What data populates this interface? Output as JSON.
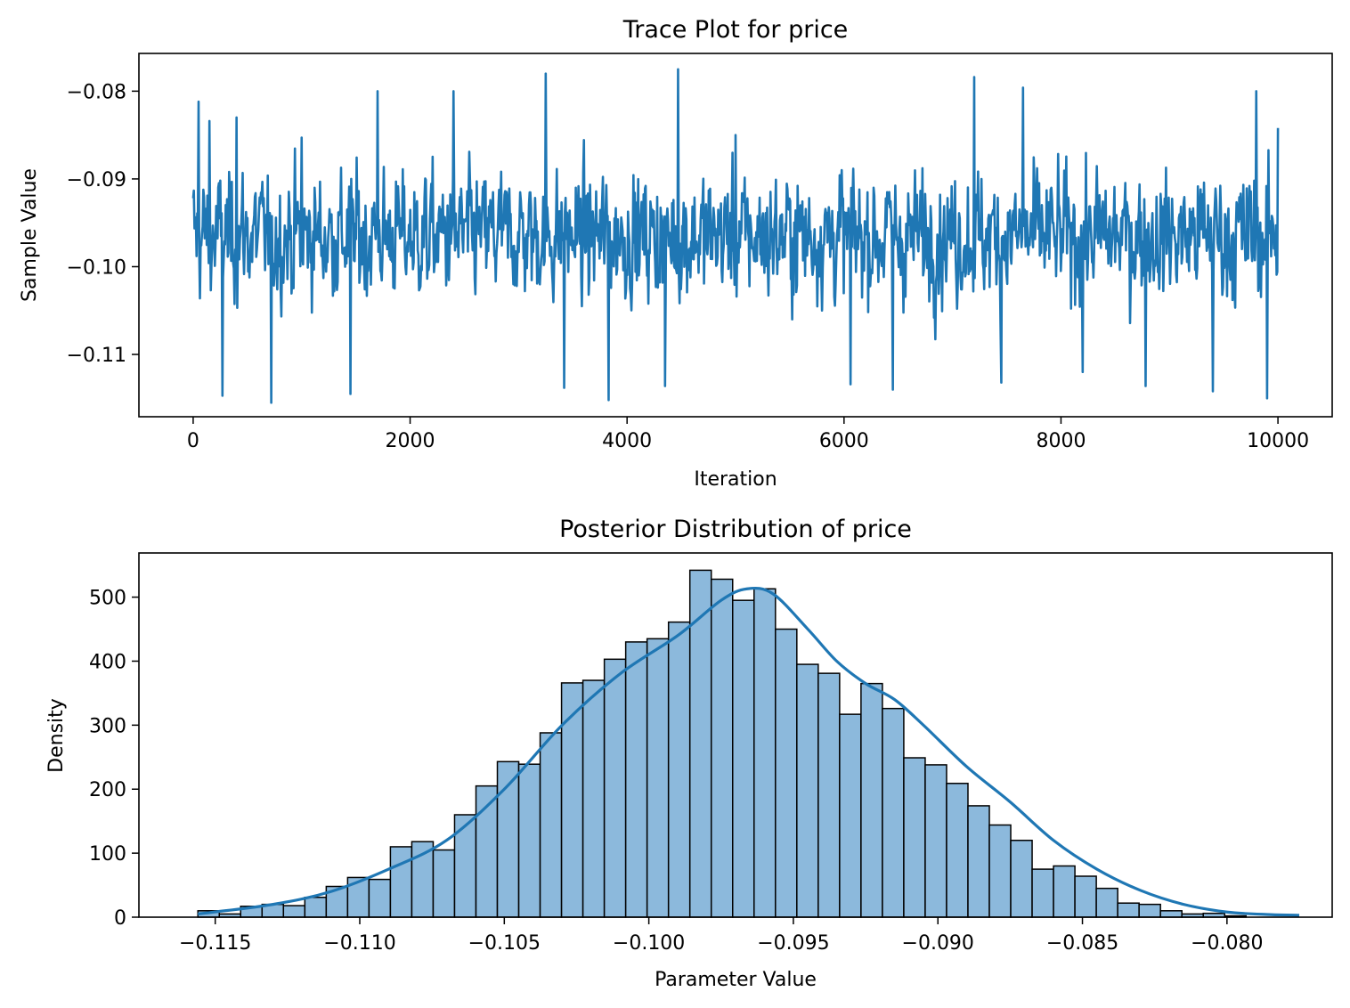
{
  "figure": {
    "background": "#ffffff",
    "line_color": "#1f77b4",
    "bar_fill": "#8cb9dc",
    "bar_edge": "#000000"
  },
  "chart_data": [
    {
      "type": "line",
      "title": "Trace Plot for price",
      "xlabel": "Iteration",
      "ylabel": "Sample Value",
      "xlim": [
        -500,
        10500
      ],
      "ylim": [
        -0.1171,
        -0.0757
      ],
      "xticks": [
        0,
        2000,
        4000,
        6000,
        8000,
        10000
      ],
      "xtick_labels": [
        "0",
        "2000",
        "4000",
        "6000",
        "8000",
        "10000"
      ],
      "yticks": [
        -0.11,
        -0.1,
        -0.09,
        -0.08
      ],
      "ytick_labels": [
        "−0.11",
        "−0.10",
        "−0.09",
        "−0.08"
      ],
      "grid": false,
      "series": [
        {
          "n_samples": 10000,
          "x": [
            0,
            50,
            150,
            270,
            400,
            720,
            1000,
            1450,
            1700,
            2400,
            3250,
            3420,
            3830,
            4350,
            4470,
            5000,
            6060,
            6450,
            7200,
            7450,
            7650,
            8200,
            8780,
            9400,
            9800,
            9900,
            10000
          ],
          "y": [
            -0.0922,
            -0.0812,
            -0.0834,
            -0.1147,
            -0.083,
            -0.1155,
            -0.0853,
            -0.1145,
            -0.08,
            -0.08,
            -0.078,
            -0.1138,
            -0.1152,
            -0.1136,
            -0.0775,
            -0.085,
            -0.1134,
            -0.114,
            -0.0784,
            -0.1132,
            -0.0796,
            -0.112,
            -0.1136,
            -0.1142,
            -0.08,
            -0.115,
            -0.0842
          ]
        }
      ]
    },
    {
      "type": "bar",
      "subtype": "histogram_with_kde",
      "title": "Posterior Distribution of price",
      "xlabel": "Parameter Value",
      "ylabel": "Density",
      "xlim": [
        -0.11764,
        -0.07636
      ],
      "ylim": [
        0,
        569
      ],
      "xticks": [
        -0.115,
        -0.11,
        -0.105,
        -0.1,
        -0.095,
        -0.09,
        -0.085,
        -0.08
      ],
      "xtick_labels": [
        "−0.115",
        "−0.110",
        "−0.105",
        "−0.100",
        "−0.095",
        "−0.090",
        "−0.085",
        "−0.080"
      ],
      "yticks": [
        0,
        100,
        200,
        300,
        400,
        500
      ],
      "ytick_labels": [
        "0",
        "100",
        "200",
        "300",
        "400",
        "500"
      ],
      "grid": false,
      "bin_start": -0.1156,
      "bin_width": 0.00074,
      "values": [
        10,
        5,
        17,
        20,
        18,
        31,
        48,
        62,
        59,
        110,
        118,
        105,
        160,
        205,
        243,
        239,
        288,
        366,
        370,
        403,
        430,
        435,
        461,
        542,
        528,
        495,
        513,
        450,
        395,
        381,
        317,
        365,
        326,
        249,
        238,
        209,
        174,
        144,
        120,
        75,
        80,
        64,
        45,
        22,
        20,
        10,
        5,
        6,
        2
      ],
      "kde": {
        "x": [
          -0.1156,
          -0.113,
          -0.111,
          -0.109,
          -0.107,
          -0.105,
          -0.103,
          -0.101,
          -0.099,
          -0.0975,
          -0.0966,
          -0.0957,
          -0.0945,
          -0.0935,
          -0.0925,
          -0.0915,
          -0.0905,
          -0.089,
          -0.0875,
          -0.086,
          -0.0845,
          -0.083,
          -0.0815,
          -0.08,
          -0.0785,
          -0.0775
        ],
        "y": [
          5,
          20,
          40,
          75,
          120,
          200,
          300,
          380,
          440,
          495,
          513,
          505,
          450,
          400,
          365,
          340,
          300,
          235,
          180,
          120,
          75,
          42,
          20,
          8,
          4,
          3
        ]
      }
    }
  ]
}
